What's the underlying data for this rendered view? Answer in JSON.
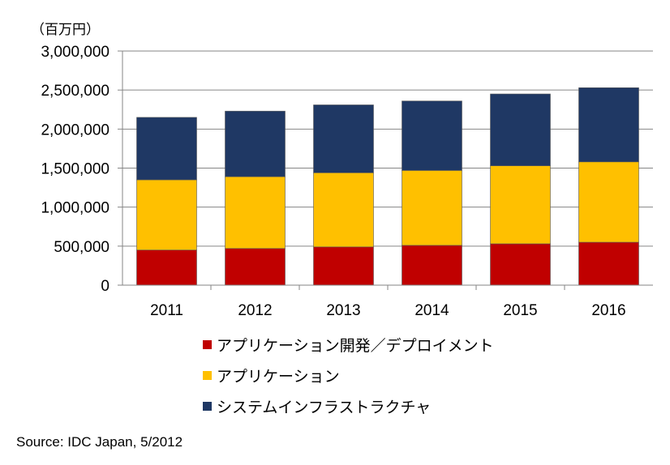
{
  "chart_data": {
    "type": "bar",
    "stacked": true,
    "unit_label": "（百万円）",
    "categories": [
      "2011",
      "2012",
      "2013",
      "2014",
      "2015",
      "2016"
    ],
    "ylim": [
      0,
      3000000
    ],
    "yticks": [
      0,
      500000,
      1000000,
      1500000,
      2000000,
      2500000,
      3000000
    ],
    "ytick_labels": [
      "0",
      "500,000",
      "1,000,000",
      "1,500,000",
      "2,000,000",
      "2,500,000",
      "3,000,000"
    ],
    "grid": true,
    "legend_position": "bottom",
    "series": [
      {
        "name": "アプリケーション開発／デプロイメント",
        "color": "#c00000",
        "values": [
          450000,
          470000,
          490000,
          510000,
          530000,
          550000
        ]
      },
      {
        "name": "アプリケーション",
        "color": "#ffc000",
        "values": [
          900000,
          920000,
          950000,
          960000,
          1000000,
          1030000
        ]
      },
      {
        "name": "システムインフラストラクチャ",
        "color": "#1f3864",
        "values": [
          800000,
          840000,
          870000,
          890000,
          920000,
          950000
        ]
      }
    ]
  },
  "source": "Source: IDC Japan, 5/2012"
}
